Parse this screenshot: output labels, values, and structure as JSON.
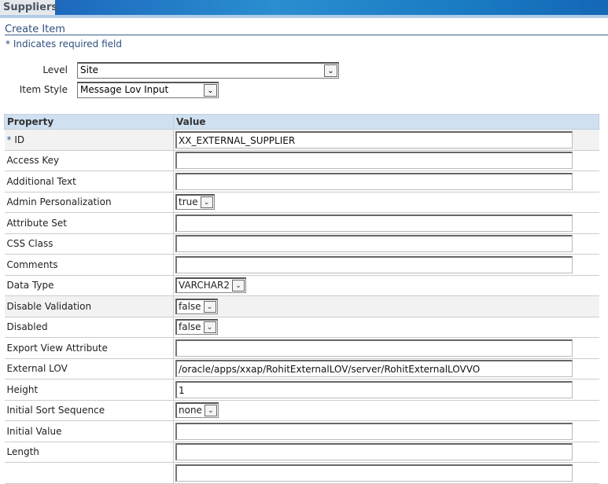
{
  "header": {
    "tab": "Suppliers"
  },
  "page": {
    "title": "Create Item",
    "required_note": "* Indicates required field"
  },
  "form": {
    "level": {
      "label": "Level",
      "value": "Site"
    },
    "item_style": {
      "label": "Item Style",
      "value": "Message Lov Input"
    }
  },
  "table": {
    "columns": [
      "Property",
      "Value"
    ],
    "rows": [
      {
        "label": "ID",
        "required": "*",
        "type": "text",
        "value": "XX_EXTERNAL_SUPPLIER",
        "shade": true
      },
      {
        "label": "Access Key",
        "type": "text",
        "value": ""
      },
      {
        "label": "Additional Text",
        "type": "text",
        "value": ""
      },
      {
        "label": "Admin Personalization",
        "type": "select",
        "value": "true"
      },
      {
        "label": "Attribute Set",
        "type": "text",
        "value": ""
      },
      {
        "label": "CSS Class",
        "type": "text",
        "value": ""
      },
      {
        "label": "Comments",
        "type": "text",
        "value": ""
      },
      {
        "label": "Data Type",
        "type": "select",
        "value": "VARCHAR2"
      },
      {
        "label": "Disable Validation",
        "type": "select",
        "value": "false",
        "shade": true
      },
      {
        "label": "Disabled",
        "type": "select",
        "value": "false"
      },
      {
        "label": "Export View Attribute",
        "type": "text",
        "value": ""
      },
      {
        "label": "External LOV",
        "type": "text",
        "value": "/oracle/apps/xxap/RohitExternalLOV/server/RohitExternalLOVVO"
      },
      {
        "label": "Height",
        "type": "text",
        "value": "1"
      },
      {
        "label": "Initial Sort Sequence",
        "type": "select",
        "value": "none"
      },
      {
        "label": "Initial Value",
        "type": "text",
        "value": ""
      },
      {
        "label": "Length",
        "type": "text",
        "value": ""
      },
      {
        "label": "",
        "type": "text",
        "value": ""
      }
    ]
  }
}
